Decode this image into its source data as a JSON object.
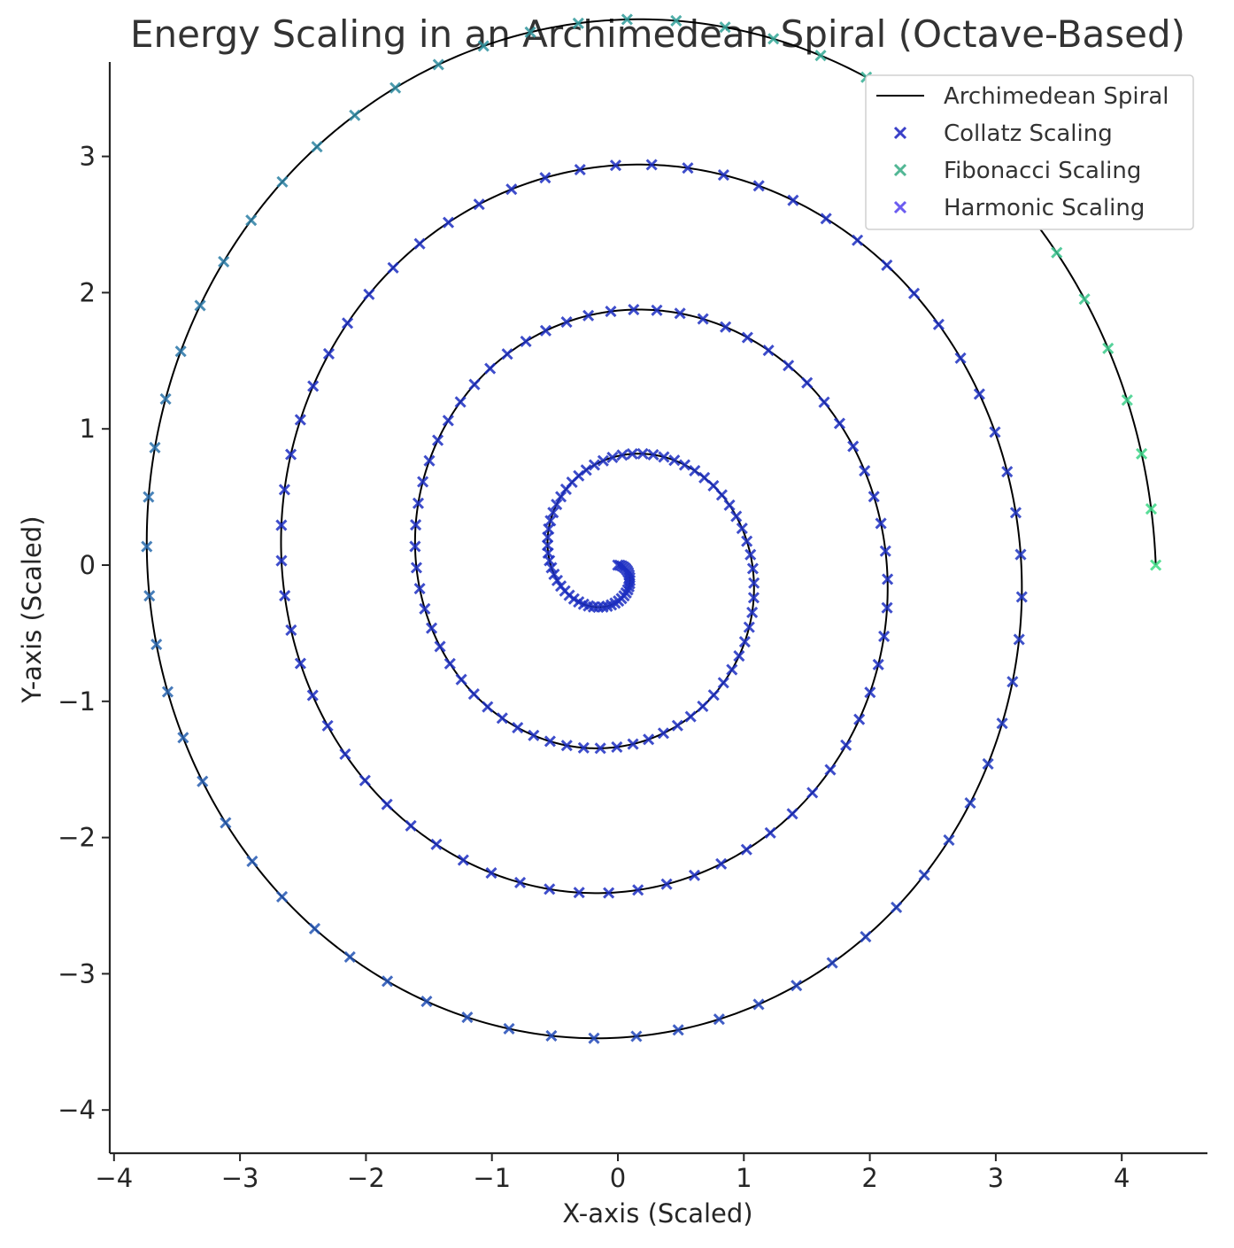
{
  "chart_data": {
    "type": "scatter",
    "title": "Energy Scaling in an Archimedean Spiral (Octave-Based)",
    "xlabel": "X-axis (Scaled)",
    "ylabel": "Y-axis (Scaled)",
    "xlim": [
      -4.05,
      4.7
    ],
    "ylim": [
      -4.3,
      3.7
    ],
    "x_ticks": [
      -4,
      -3,
      -2,
      -1,
      0,
      1,
      2,
      3,
      4
    ],
    "y_ticks": [
      -4,
      -3,
      -2,
      -1,
      0,
      1,
      2,
      3
    ],
    "x_tick_labels": [
      "−4",
      "−3",
      "−2",
      "−1",
      "0",
      "1",
      "2",
      "3",
      "4"
    ],
    "y_tick_labels": [
      "−4",
      "−3",
      "−2",
      "−1",
      "0",
      "1",
      "2",
      "3"
    ],
    "grid": false,
    "legend_position": "top-right",
    "spiral": {
      "name": "Archimedean Spiral",
      "equation": "r = 4.27 * theta / (8*pi), x = r*cos(theta), y = -r*sin(theta)",
      "theta_max_turns": 4,
      "color": "#000000"
    },
    "series": [
      {
        "name": "Archimedean Spiral",
        "style": "line",
        "color": "#000000"
      },
      {
        "name": "Collatz Scaling",
        "style": "x-marker",
        "color": "#3a40c8"
      },
      {
        "name": "Fibonacci Scaling",
        "style": "x-marker",
        "color": "#52b795"
      },
      {
        "name": "Harmonic Scaling",
        "style": "x-marker",
        "color": "#6b5cf0"
      }
    ],
    "marker_colormap": {
      "start": "#1d2fc2",
      "end": "#3ddc84",
      "marker_count": 260
    }
  }
}
